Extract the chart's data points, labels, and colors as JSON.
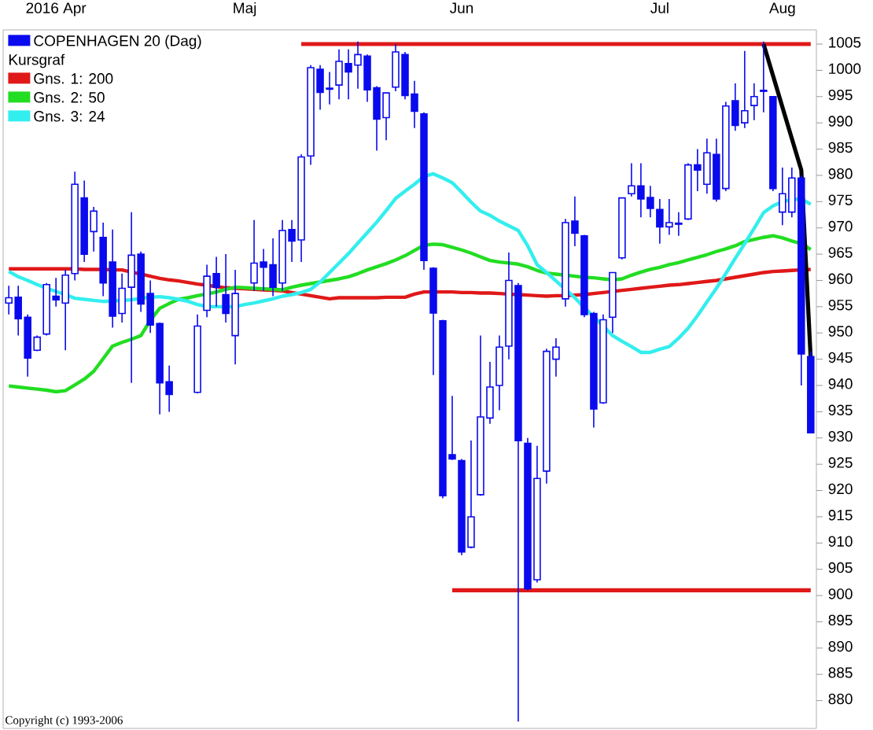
{
  "chart_data": {
    "type": "candlestick",
    "categories": [
      null,
      null,
      null,
      null,
      null,
      "2016 Apr",
      null,
      null,
      null,
      null,
      null,
      null,
      null,
      null,
      null,
      null,
      null,
      null,
      null,
      null,
      null,
      null,
      null,
      null,
      null,
      "Maj",
      null,
      null,
      null,
      null,
      null,
      null,
      null,
      null,
      null,
      null,
      null,
      null,
      null,
      null,
      null,
      null,
      null,
      null,
      null,
      null,
      null,
      null,
      "Jun",
      null,
      null,
      null,
      null,
      null,
      null,
      null,
      null,
      null,
      null,
      null,
      null,
      null,
      null,
      null,
      null,
      null,
      null,
      null,
      null,
      "Jul",
      null,
      null,
      null,
      null,
      null,
      null,
      null,
      null,
      null,
      null,
      null,
      null,
      "Aug",
      null,
      null,
      null
    ],
    "ylim": [
      874.7,
      1007.7
    ],
    "yticks": [
      880,
      885,
      890,
      895,
      900,
      905,
      910,
      915,
      920,
      925,
      930,
      935,
      940,
      945,
      950,
      955,
      960,
      965,
      970,
      975,
      980,
      985,
      990,
      995,
      1000,
      1005
    ],
    "legend": "top left",
    "legend_title": "Kursgraf",
    "annotations": [
      "Copyright (c) 1993-2006"
    ],
    "series": [
      {
        "name": "COPENHAGEN 20 (Dag)",
        "color": "#0a0aee",
        "ohlc": [
          [
            955.7,
            959,
            953.5,
            956.7
          ],
          [
            956.8,
            959,
            949.5,
            952.7
          ],
          [
            953,
            953.5,
            941.7,
            945.2
          ],
          [
            946.7,
            949.5,
            946.5,
            949.2
          ],
          [
            949.8,
            959.5,
            949.5,
            959.2
          ],
          [
            957,
            960.5,
            955,
            956.3
          ],
          [
            955.7,
            962,
            946.7,
            961
          ],
          [
            961.3,
            980.7,
            960,
            978.3
          ],
          [
            975.7,
            979,
            963.5,
            965
          ],
          [
            969.3,
            974,
            965.5,
            973.2
          ],
          [
            968.2,
            971,
            957,
            959.5
          ],
          [
            963.5,
            969.7,
            951,
            953.2
          ],
          [
            953.7,
            961.3,
            952,
            958.5
          ],
          [
            958.7,
            973,
            940.5,
            964.8
          ],
          [
            965,
            965.5,
            954,
            955.5
          ],
          [
            957.5,
            960,
            950,
            951.5
          ],
          [
            951.8,
            952,
            934.5,
            940.5
          ],
          [
            940.7,
            943.8,
            935,
            938.3
          ],
          null,
          null,
          [
            938.7,
            953.5,
            938.5,
            951.3
          ],
          [
            954.3,
            963,
            953,
            960.8
          ],
          [
            961.3,
            964.5,
            955,
            958.7
          ],
          [
            957.3,
            965,
            952,
            953.7
          ],
          [
            949.5,
            962,
            944,
            957.5
          ],
          null,
          [
            959.5,
            971.5,
            958,
            963.3
          ],
          [
            963.5,
            966,
            958,
            962.5
          ],
          [
            963,
            968,
            957,
            958.7
          ],
          [
            959.5,
            971.5,
            958,
            969.5
          ],
          [
            969.7,
            971.5,
            963.5,
            967.5
          ],
          [
            967.7,
            984,
            963.5,
            983.5
          ],
          [
            983.7,
            1001,
            982,
            1000.5
          ],
          [
            1000.2,
            1001,
            992.5,
            995.8
          ],
          [
            996.6,
            999.7,
            993.5,
            996.4
          ],
          [
            997.2,
            1004,
            994.5,
            1001.7
          ],
          [
            1001.3,
            1004,
            994.5,
            999.7
          ],
          [
            1001,
            1005.5,
            996.5,
            1003
          ],
          [
            1002.7,
            1003,
            994,
            996.3
          ],
          [
            996.7,
            997,
            984.7,
            990.7
          ],
          [
            991,
            995.7,
            986.7,
            995.7
          ],
          [
            996.8,
            1005,
            996,
            1003.5
          ],
          [
            1003,
            1003.5,
            994.5,
            995.2
          ],
          [
            995.5,
            998,
            989,
            992.2
          ],
          [
            991.7,
            992,
            962,
            963.8
          ],
          [
            962.3,
            962.5,
            942,
            953.8
          ],
          [
            952.3,
            952.5,
            918.5,
            919
          ],
          [
            926.8,
            938,
            925.8,
            926
          ],
          [
            925.7,
            926,
            907.7,
            908.3
          ],
          [
            909.2,
            929.5,
            909,
            915
          ],
          [
            919.2,
            949.5,
            919,
            934
          ],
          [
            933.8,
            944.5,
            932.7,
            939.7
          ],
          [
            940,
            949.5,
            935.3,
            947.3
          ],
          [
            947.5,
            965.3,
            945,
            960
          ],
          [
            959,
            959.5,
            876,
            929.5
          ],
          [
            929,
            930,
            901,
            901.3
          ],
          [
            903,
            928.5,
            902.5,
            922.3
          ],
          [
            923.7,
            947,
            921.3,
            946.5
          ],
          [
            945,
            949,
            941.7,
            947.3
          ],
          [
            956.5,
            971.7,
            955,
            971
          ],
          [
            971.3,
            976,
            966.5,
            969
          ],
          [
            968.5,
            968.7,
            953,
            953.5
          ],
          [
            953.7,
            954,
            932,
            935.5
          ],
          [
            936.7,
            953.5,
            936.5,
            952.5
          ],
          [
            953,
            961.5,
            950,
            961.5
          ],
          [
            964.3,
            975.7,
            964,
            975.7
          ],
          [
            976.5,
            982.3,
            976,
            978
          ],
          [
            978,
            982.3,
            972,
            975.5
          ],
          [
            975.8,
            978,
            972,
            973.7
          ],
          [
            973.5,
            975.5,
            967,
            970.2
          ],
          [
            970.2,
            975.5,
            968.7,
            971
          ],
          [
            970.7,
            973,
            968.5,
            970.9
          ],
          [
            971.7,
            982.3,
            971.5,
            982
          ],
          [
            982,
            985,
            977,
            981
          ],
          [
            978.3,
            987,
            976.5,
            984.3
          ],
          [
            984,
            987,
            975,
            975.5
          ],
          [
            977.5,
            994,
            977,
            993.2
          ],
          [
            994.2,
            997.5,
            988.5,
            989.5
          ],
          [
            990,
            1003.7,
            989,
            992.3
          ],
          [
            993.3,
            997.5,
            990.5,
            995
          ],
          [
            996,
            1005.5,
            992,
            996.2
          ],
          [
            995,
            995,
            977,
            977.5
          ],
          [
            973,
            981.5,
            970.5,
            976.5
          ],
          [
            973,
            981.5,
            972,
            979.5
          ],
          [
            979.5,
            980,
            940,
            946
          ],
          [
            945.5,
            946.5,
            931,
            931
          ]
        ]
      },
      {
        "type": "line",
        "name": "Gns. 1: 200",
        "color": "#e01818",
        "values": [
          962.2,
          962.2,
          962.2,
          962.2,
          962.2,
          962.2,
          962.2,
          962.2,
          962.1,
          962.1,
          962.1,
          962,
          962,
          961.6,
          961.2,
          960.8,
          960.4,
          960.1,
          959.9,
          959.6,
          959.3,
          959.1,
          958.8,
          958.6,
          958.5,
          958.4,
          958.3,
          958.2,
          958.1,
          958,
          957.7,
          957.4,
          957.1,
          956.8,
          956.5,
          956.7,
          956.7,
          956.7,
          956.7,
          956.7,
          956.8,
          956.8,
          956.8,
          957.4,
          957.8,
          957.8,
          957.8,
          957.8,
          957.7,
          957.7,
          957.6,
          957.6,
          957.5,
          957.4,
          957.3,
          957.2,
          957.1,
          957,
          957.1,
          957.1,
          957.2,
          957.3,
          957.5,
          957.7,
          957.9,
          958.1,
          958.3,
          958.5,
          958.7,
          958.9,
          959.1,
          959.2,
          959.4,
          959.6,
          959.8,
          960,
          960.3,
          960.6,
          960.9,
          961.2,
          961.5,
          961.7,
          961.8,
          961.9,
          962,
          962.1
        ]
      },
      {
        "type": "line",
        "name": "Gns. 2: 50",
        "color": "#22dd22",
        "values": [
          939.9,
          939.7,
          939.5,
          939.3,
          939.1,
          938.8,
          939,
          940.1,
          941.2,
          942.7,
          945.1,
          947.5,
          948.2,
          948.8,
          949.5,
          952.4,
          954.7,
          955.6,
          956.4,
          956.7,
          957.1,
          957.4,
          957.8,
          958.3,
          958.7,
          958.6,
          958.5,
          958.4,
          958.3,
          958.2,
          958.7,
          959.1,
          959.4,
          959.7,
          960,
          960.3,
          960.7,
          961.3,
          962,
          962.6,
          963.2,
          963.9,
          964.7,
          965.7,
          966.7,
          966.9,
          966.8,
          966.3,
          965.8,
          965.2,
          964.5,
          963.8,
          963.5,
          963.3,
          963.1,
          962.6,
          961.9,
          961.4,
          961.2,
          961,
          960.8,
          960.6,
          960.5,
          960.3,
          960.1,
          960.3,
          961,
          961.6,
          962.1,
          962.5,
          963,
          963.4,
          963.9,
          964.4,
          964.9,
          965.5,
          966,
          966.6,
          967.4,
          967.8,
          968.2,
          968.5,
          968.1,
          967.5,
          967,
          965.9
        ]
      },
      {
        "type": "line",
        "name": "Gns. 3: 24",
        "color": "#33eeee",
        "values": [
          961.7,
          960.7,
          960,
          959.2,
          958.5,
          957.9,
          957.3,
          956.6,
          956.4,
          956.2,
          956,
          956.1,
          956.2,
          956.3,
          956.6,
          956.8,
          956.9,
          956.7,
          956.4,
          956,
          955.4,
          955,
          955,
          955,
          955,
          955.4,
          955.7,
          956.1,
          956.5,
          957,
          957.3,
          957.7,
          958.3,
          959.7,
          961.5,
          963.3,
          965.1,
          967.1,
          969.1,
          971.1,
          973.3,
          975.6,
          977,
          978.3,
          979.8,
          980.3,
          979.5,
          978.6,
          976.8,
          974.9,
          973.2,
          972.4,
          971.3,
          970.4,
          969.5,
          966.6,
          963,
          961.5,
          959.9,
          958.3,
          956.7,
          954.8,
          953.1,
          951.3,
          949.5,
          948.4,
          947.4,
          946.3,
          946.3,
          946.9,
          947.4,
          949,
          950.9,
          953.3,
          955.9,
          958.5,
          961.3,
          964.2,
          967,
          969.9,
          972.9,
          974.2,
          975,
          975.4,
          975.5,
          974.5
        ]
      },
      {
        "type": "line",
        "color": "#e01818",
        "values": [
          null,
          null,
          null,
          null,
          null,
          null,
          null,
          null,
          null,
          null,
          null,
          null,
          null,
          null,
          null,
          null,
          null,
          null,
          null,
          null,
          null,
          null,
          null,
          null,
          null,
          null,
          null,
          null,
          null,
          null,
          null,
          1005,
          1005,
          1005,
          1005,
          1005,
          1005,
          1005,
          1005,
          1005,
          1005,
          1005,
          1005,
          1005,
          1005,
          1005,
          1005,
          1005,
          1005,
          1005,
          1005,
          1005,
          1005,
          1005,
          1005,
          1005,
          1005,
          1005,
          1005,
          1005,
          1005,
          1005,
          1005,
          1005,
          1005,
          1005,
          1005,
          1005,
          1005,
          1005,
          1005,
          1005,
          1005,
          1005,
          1005,
          1005,
          1005,
          1005,
          1005,
          1005,
          1005,
          1005,
          1005,
          1005,
          1005,
          1005
        ]
      },
      {
        "type": "line",
        "color": "#e01818",
        "values": [
          null,
          null,
          null,
          null,
          null,
          null,
          null,
          null,
          null,
          null,
          null,
          null,
          null,
          null,
          null,
          null,
          null,
          null,
          null,
          null,
          null,
          null,
          null,
          null,
          null,
          null,
          null,
          null,
          null,
          null,
          null,
          null,
          null,
          null,
          null,
          null,
          null,
          null,
          null,
          null,
          null,
          null,
          null,
          null,
          null,
          null,
          null,
          901,
          901,
          901,
          901,
          901,
          901,
          901,
          901,
          901,
          901,
          901,
          901,
          901,
          901,
          901,
          901,
          901,
          901,
          901,
          901,
          901,
          901,
          901,
          901,
          901,
          901,
          901,
          901,
          901,
          901,
          901,
          901,
          901,
          901,
          901,
          901,
          901,
          901,
          901
        ]
      },
      {
        "type": "line",
        "color": "#000000",
        "values": [
          null,
          null,
          null,
          null,
          null,
          null,
          null,
          null,
          null,
          null,
          null,
          null,
          null,
          null,
          null,
          null,
          null,
          null,
          null,
          null,
          null,
          null,
          null,
          null,
          null,
          null,
          null,
          null,
          null,
          null,
          null,
          null,
          null,
          null,
          null,
          null,
          null,
          null,
          null,
          null,
          null,
          null,
          null,
          null,
          null,
          null,
          null,
          null,
          null,
          null,
          null,
          null,
          null,
          null,
          null,
          null,
          null,
          null,
          null,
          null,
          null,
          null,
          null,
          null,
          null,
          null,
          null,
          null,
          null,
          null,
          null,
          null,
          null,
          null,
          null,
          null,
          null,
          null,
          null,
          null,
          1005,
          999,
          993,
          987,
          981,
          945
        ]
      }
    ]
  }
}
